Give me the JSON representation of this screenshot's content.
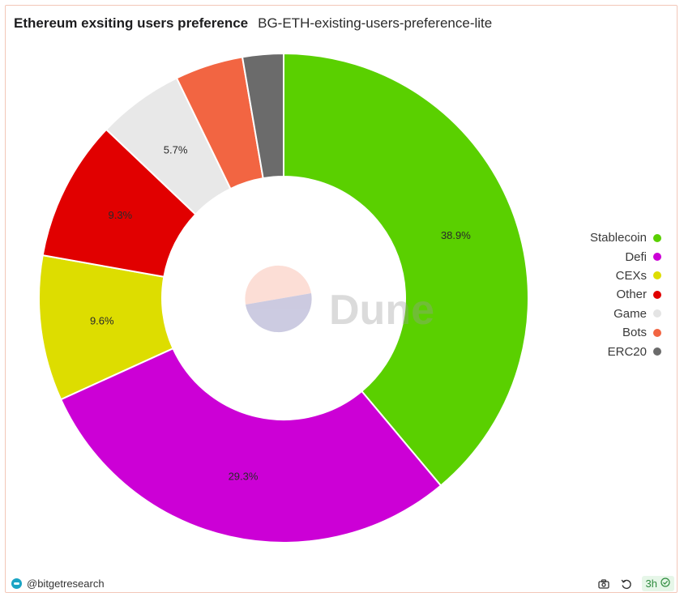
{
  "header": {
    "title": "Ethereum exsiting users preference",
    "subtitle": "BG-ETH-existing-users-preference-lite"
  },
  "watermark": {
    "text": "Dune"
  },
  "footer": {
    "author": "@bitgetresearch",
    "age": "3h",
    "icons": [
      "camera-icon",
      "refresh-icon",
      "check-circle-icon"
    ]
  },
  "chart_data": {
    "type": "pie",
    "donut": true,
    "legend_position": "right",
    "series": [
      {
        "name": "Stablecoin",
        "value": 38.9,
        "label": "38.9%",
        "color": "#5ad000"
      },
      {
        "name": "Defi",
        "value": 29.3,
        "label": "29.3%",
        "color": "#cc00d6"
      },
      {
        "name": "CEXs",
        "value": 9.6,
        "label": "9.6%",
        "color": "#dddd00"
      },
      {
        "name": "Other",
        "value": 9.3,
        "label": "9.3%",
        "color": "#e10000"
      },
      {
        "name": "Game",
        "value": 5.7,
        "label": "5.7%",
        "color": "#e8e8e8"
      },
      {
        "name": "Bots",
        "value": 4.5,
        "label": "",
        "color": "#f26542"
      },
      {
        "name": "ERC20",
        "value": 2.7,
        "label": "",
        "color": "#6b6b6b"
      }
    ]
  }
}
